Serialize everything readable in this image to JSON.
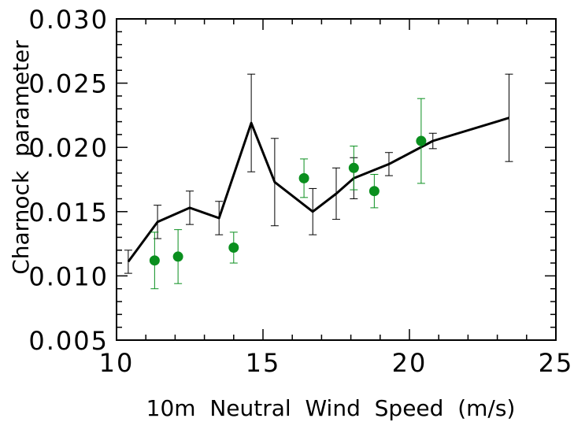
{
  "chart_data": {
    "type": "line",
    "title": "",
    "xlabel": "10m  Neutral  Wind  Speed  (m/s)",
    "ylabel": "Charnock  parameter",
    "xlim": [
      10,
      25
    ],
    "ylim": [
      0.005,
      0.03
    ],
    "x_ticks": [
      "10",
      "15",
      "20",
      "25"
    ],
    "y_ticks": [
      "0.005",
      "0.010",
      "0.015",
      "0.020",
      "0.025",
      "0.030"
    ],
    "grid": false,
    "series": [
      {
        "style": "line-with-errorbars",
        "color": "#000000",
        "points": [
          {
            "x": 10.4,
            "y": 0.0111,
            "err": 0.0009
          },
          {
            "x": 11.4,
            "y": 0.0142,
            "err": 0.0013
          },
          {
            "x": 12.5,
            "y": 0.0153,
            "err": 0.0013
          },
          {
            "x": 13.5,
            "y": 0.0145,
            "err": 0.0013
          },
          {
            "x": 14.6,
            "y": 0.0219,
            "err": 0.0038
          },
          {
            "x": 15.4,
            "y": 0.0173,
            "err": 0.0034
          },
          {
            "x": 16.7,
            "y": 0.015,
            "err": 0.0018
          },
          {
            "x": 17.5,
            "y": 0.0164,
            "err": 0.002
          },
          {
            "x": 18.1,
            "y": 0.0176,
            "err": 0.0016
          },
          {
            "x": 19.3,
            "y": 0.0187,
            "err": 0.0009
          },
          {
            "x": 20.8,
            "y": 0.0205,
            "err": 0.0006
          },
          {
            "x": 23.4,
            "y": 0.0223,
            "err": 0.0034
          }
        ]
      },
      {
        "style": "points-with-errorbars",
        "color": "#0a8f1e",
        "points": [
          {
            "x": 11.3,
            "y": 0.0112,
            "err": 0.0022
          },
          {
            "x": 12.1,
            "y": 0.0115,
            "err": 0.0021
          },
          {
            "x": 14.0,
            "y": 0.0122,
            "err": 0.0012
          },
          {
            "x": 16.4,
            "y": 0.0176,
            "err": 0.0015
          },
          {
            "x": 18.1,
            "y": 0.0184,
            "err": 0.0017
          },
          {
            "x": 18.8,
            "y": 0.0166,
            "err": 0.0013
          },
          {
            "x": 20.4,
            "y": 0.0205,
            "err": 0.0033
          }
        ]
      }
    ]
  }
}
